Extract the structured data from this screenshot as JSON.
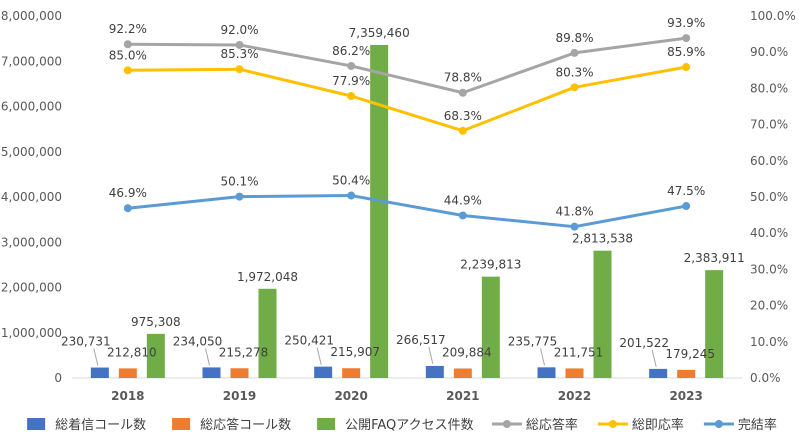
{
  "chart_data": {
    "type": "bar",
    "categories": [
      "2018",
      "2019",
      "2020",
      "2021",
      "2022",
      "2023"
    ],
    "y_left": {
      "ylim": [
        0,
        8000000
      ],
      "ticks": [
        "0",
        "1,000,000",
        "2,000,000",
        "3,000,000",
        "4,000,000",
        "5,000,000",
        "6,000,000",
        "7,000,000",
        "8,000,000"
      ]
    },
    "y_right": {
      "ylim": [
        0,
        100
      ],
      "ticks": [
        "0.0%",
        "10.0%",
        "20.0%",
        "30.0%",
        "40.0%",
        "50.0%",
        "60.0%",
        "70.0%",
        "80.0%",
        "90.0%",
        "100.0%"
      ]
    },
    "bar_series": [
      {
        "name": "総着信コール数",
        "color": "#4472C4",
        "values": [
          230731,
          234050,
          250421,
          266517,
          235775,
          201522
        ],
        "labels": [
          "230,731",
          "234,050",
          "250,421",
          "266,517",
          "235,775",
          "201,522"
        ]
      },
      {
        "name": "総応答コール数",
        "color": "#ED7D31",
        "values": [
          212810,
          215278,
          215907,
          209884,
          211751,
          179245
        ],
        "labels": [
          "212,810",
          "215,278",
          "215,907",
          "209,884",
          "211,751",
          "179,245"
        ]
      },
      {
        "name": "公開FAQアクセス件数",
        "color": "#70AD47",
        "values": [
          975308,
          1972048,
          7359460,
          2239813,
          2813538,
          2383911
        ],
        "labels": [
          "975,308",
          "1,972,048",
          "7,359,460",
          "2,239,813",
          "2,813,538",
          "2,383,911"
        ]
      }
    ],
    "line_series": [
      {
        "name": "総応答率",
        "color": "#A5A5A5",
        "values": [
          92.2,
          92.0,
          86.2,
          78.8,
          89.8,
          93.9
        ],
        "labels": [
          "92.2%",
          "92.0%",
          "86.2%",
          "78.8%",
          "89.8%",
          "93.9%"
        ]
      },
      {
        "name": "総即応率",
        "color": "#FFC000",
        "values": [
          85.0,
          85.3,
          77.9,
          68.3,
          80.3,
          85.9
        ],
        "labels": [
          "85.0%",
          "85.3%",
          "77.9%",
          "68.3%",
          "80.3%",
          "85.9%"
        ]
      },
      {
        "name": "完結率",
        "color": "#5B9BD5",
        "values": [
          46.9,
          50.1,
          50.4,
          44.9,
          41.8,
          47.5
        ],
        "labels": [
          "46.9%",
          "50.1%",
          "50.4%",
          "44.9%",
          "41.8%",
          "47.5%"
        ]
      }
    ],
    "legend_position": "bottom",
    "grid": false
  }
}
